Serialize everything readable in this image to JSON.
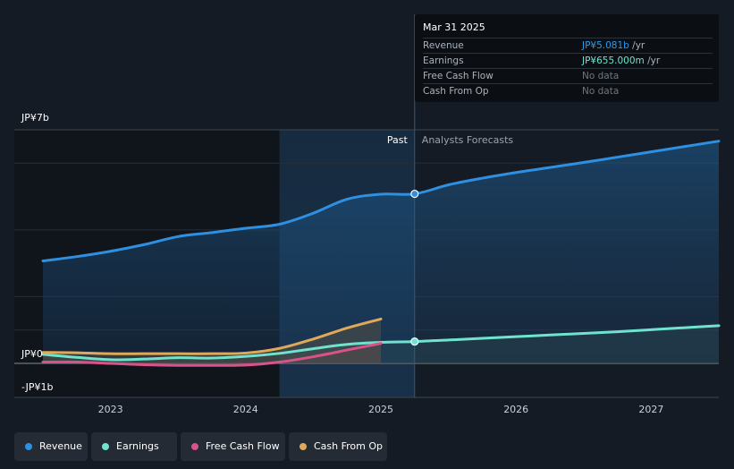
{
  "tooltip": {
    "date": "Mar 31 2025",
    "rows": [
      {
        "label": "Revenue",
        "value": "JP¥5.081b",
        "unit": " /yr",
        "color": "#2f9ae8"
      },
      {
        "label": "Earnings",
        "value": "JP¥655.000m",
        "unit": " /yr",
        "color": "#6fe3cf"
      },
      {
        "label": "Free Cash Flow",
        "value": "No data",
        "unit": "",
        "color": "#6e7680"
      },
      {
        "label": "Cash From Op",
        "value": "No data",
        "unit": "",
        "color": "#6e7680"
      }
    ]
  },
  "legend": [
    {
      "label": "Revenue",
      "color": "#2f8fe0"
    },
    {
      "label": "Earnings",
      "color": "#6fe3cf"
    },
    {
      "label": "Free Cash Flow",
      "color": "#d9528a"
    },
    {
      "label": "Cash From Op",
      "color": "#e0a95a"
    }
  ],
  "chart_data": {
    "type": "line",
    "title": "",
    "xlabel": "",
    "ylabel": "",
    "y_unit": "JP¥ billions",
    "ylim": [
      -1,
      7
    ],
    "xlim": [
      2022.5,
      2027.5
    ],
    "y_tick_labels": [
      {
        "value": 7,
        "label": "JP¥7b"
      },
      {
        "value": 0,
        "label": "JP¥0"
      },
      {
        "value": -1,
        "label": "-JP¥1b"
      }
    ],
    "x_ticks": [
      2023,
      2024,
      2025,
      2026,
      2027
    ],
    "x_tick_labels": [
      "2023",
      "2024",
      "2025",
      "2026",
      "2027"
    ],
    "past_label": "Past",
    "forecast_label": "Analysts Forecasts",
    "past_band_start": 2024.25,
    "divider_x": 2025.25,
    "series": [
      {
        "name": "Revenue",
        "color": "#2f8fe0",
        "x": [
          2022.5,
          2022.75,
          2023.0,
          2023.25,
          2023.5,
          2023.75,
          2024.0,
          2024.25,
          2024.5,
          2024.75,
          2025.0,
          2025.25,
          2025.5,
          2025.75,
          2026.0,
          2026.25,
          2026.5,
          2026.75,
          2027.0,
          2027.25,
          2027.5
        ],
        "values": [
          3.07,
          3.2,
          3.36,
          3.56,
          3.8,
          3.92,
          4.05,
          4.17,
          4.5,
          4.92,
          5.07,
          5.08,
          5.35,
          5.55,
          5.72,
          5.87,
          6.02,
          6.18,
          6.34,
          6.5,
          6.66
        ]
      },
      {
        "name": "Earnings",
        "color": "#6fe3cf",
        "x": [
          2022.5,
          2022.75,
          2023.0,
          2023.25,
          2023.5,
          2023.75,
          2024.0,
          2024.25,
          2024.5,
          2024.75,
          2025.0,
          2025.25,
          2025.5,
          2025.75,
          2026.0,
          2026.25,
          2026.5,
          2026.75,
          2027.0,
          2027.25,
          2027.5
        ],
        "values": [
          0.27,
          0.18,
          0.11,
          0.13,
          0.17,
          0.16,
          0.21,
          0.3,
          0.44,
          0.57,
          0.63,
          0.655,
          0.7,
          0.75,
          0.8,
          0.85,
          0.9,
          0.95,
          1.01,
          1.07,
          1.13
        ]
      },
      {
        "name": "Free Cash Flow",
        "color": "#d9528a",
        "x": [
          2022.5,
          2022.75,
          2023.0,
          2023.25,
          2023.5,
          2023.75,
          2024.0,
          2024.25,
          2024.5,
          2024.75,
          2025.0
        ],
        "values": [
          0.04,
          0.04,
          0.0,
          -0.04,
          -0.06,
          -0.06,
          -0.05,
          0.04,
          0.2,
          0.4,
          0.6
        ]
      },
      {
        "name": "Cash From Op",
        "color": "#e0a95a",
        "x": [
          2022.5,
          2022.75,
          2023.0,
          2023.25,
          2023.5,
          2023.75,
          2024.0,
          2024.25,
          2024.5,
          2024.75,
          2025.0
        ],
        "values": [
          0.33,
          0.32,
          0.29,
          0.29,
          0.29,
          0.29,
          0.31,
          0.45,
          0.73,
          1.06,
          1.33
        ]
      }
    ],
    "highlight_points": [
      {
        "series": "Revenue",
        "x": 2025.25,
        "y": 5.081
      },
      {
        "series": "Earnings",
        "x": 2025.25,
        "y": 0.655
      }
    ]
  }
}
